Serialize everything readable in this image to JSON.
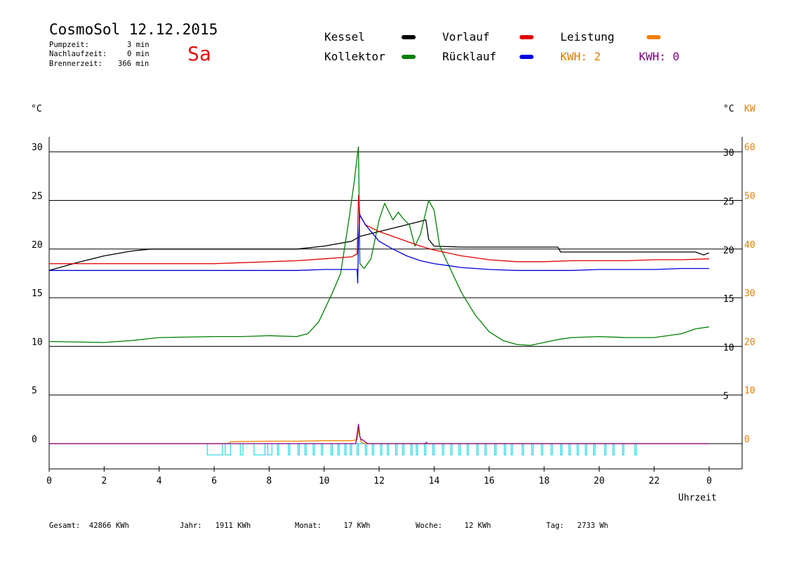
{
  "header": {
    "title": "CosmoSol 12.12.2015",
    "pump_label": "Pumpzeit:",
    "pump_value": "3 min",
    "nachlauf_label": "Nachlaufzeit:",
    "nachlauf_value": "0 min",
    "brenner_label": "Brennerzeit:",
    "brenner_value": "366 min",
    "day": "Sa",
    "day_color": "#e01010"
  },
  "legend": {
    "kessel": "Kessel",
    "kollektor": "Kollektor",
    "vorlauf": "Vorlauf",
    "ruecklauf": "Rücklauf",
    "leistung": "Leistung",
    "kwh1": "KWH: 2",
    "kwh2": "KWH: 0"
  },
  "axes": {
    "left_unit": "°C",
    "right_unit": "°C",
    "right_unit_kw": "KW",
    "xlabel": "Uhrzeit"
  },
  "footer": {
    "gesamt": "Gesamt:  42866 KWh",
    "jahr": "Jahr:   1911 KWh",
    "monat": "Monat:     17 KWh",
    "woche": "Woche:     12 KWh",
    "tag": "Tag:   2733 Wh"
  },
  "chart_data": {
    "type": "line",
    "title": "CosmoSol 12.12.2015",
    "xlabel": "Uhrzeit",
    "ylabel": "°C",
    "xlim": [
      0,
      24
    ],
    "ylim": [
      -2.5,
      32
    ],
    "x_ticks": [
      "0",
      "2",
      "4",
      "6",
      "8",
      "10",
      "12",
      "14",
      "16",
      "18",
      "20",
      "22",
      "0"
    ],
    "y_ticks_left": [
      0,
      5,
      10,
      15,
      20,
      25,
      30
    ],
    "y_ticks_right_c": [
      5,
      10,
      15,
      20,
      25,
      30
    ],
    "y_ticks_right_kw": [
      0,
      10,
      20,
      30,
      40,
      50,
      60
    ],
    "grid": "horizontal",
    "colors": {
      "kessel": "#000000",
      "kollektor": "#008000",
      "vorlauf": "#e00000",
      "ruecklauf": "#0000e0",
      "leistung": "#f08000",
      "kwh2": "#800080",
      "pump": "#00d0e0",
      "kw_axis": "#e08000"
    },
    "series": [
      {
        "name": "Kessel",
        "key": "kessel",
        "x": [
          0,
          1,
          2,
          3,
          3.7,
          9.0,
          10.0,
          11.0,
          11.3,
          12.0,
          13.0,
          13.7,
          13.8,
          14.0,
          15,
          18.5,
          18.6,
          19,
          20,
          21,
          22,
          23.5,
          23.8,
          24
        ],
        "y": [
          17.8,
          18.6,
          19.3,
          19.8,
          20.0,
          20.0,
          20.3,
          20.8,
          21.3,
          21.8,
          22.5,
          23.0,
          21.0,
          20.3,
          20.2,
          20.2,
          19.7,
          19.7,
          19.7,
          19.7,
          19.7,
          19.7,
          19.4,
          19.6
        ]
      },
      {
        "name": "Kollektor",
        "key": "kollektor",
        "x": [
          0,
          2,
          3,
          4,
          6,
          7,
          8,
          9,
          9.4,
          9.8,
          10.3,
          10.6,
          10.9,
          11.1,
          11.2,
          11.25,
          11.3,
          11.45,
          11.7,
          12.0,
          12.2,
          12.5,
          12.7,
          12.85,
          13.1,
          13.3,
          13.5,
          13.8,
          14.0,
          14.2,
          14.5,
          15,
          15.5,
          16,
          16.5,
          17,
          17.5,
          18,
          18.5,
          19,
          20,
          21,
          22,
          23,
          23.5,
          24
        ],
        "y": [
          10.5,
          10.4,
          10.6,
          10.9,
          11.0,
          11.0,
          11.1,
          11.0,
          11.3,
          12.5,
          15.5,
          17.5,
          23,
          27,
          29.5,
          30.5,
          18.5,
          18.0,
          19.0,
          23.0,
          24.7,
          23.0,
          23.8,
          23.2,
          22.5,
          20.3,
          21.5,
          25.0,
          24.0,
          20.3,
          18.5,
          15.5,
          13.2,
          11.5,
          10.6,
          10.2,
          10.1,
          10.4,
          10.7,
          10.9,
          11.0,
          10.9,
          10.9,
          11.3,
          11.8,
          12.0
        ]
      },
      {
        "name": "Vorlauf",
        "key": "vorlauf",
        "x": [
          0,
          1,
          2,
          3,
          4,
          5,
          6,
          7,
          8,
          9,
          10,
          11,
          11.2,
          11.25,
          11.3,
          11.5,
          12,
          12.5,
          13,
          13.5,
          14,
          15,
          16,
          17,
          18,
          19,
          20,
          21,
          22,
          23,
          24
        ],
        "y": [
          18.5,
          18.5,
          18.5,
          18.5,
          18.5,
          18.5,
          18.5,
          18.6,
          18.7,
          18.8,
          19.0,
          19.2,
          19.5,
          25.5,
          23.5,
          22.5,
          21.8,
          21.3,
          20.8,
          20.3,
          19.9,
          19.3,
          18.9,
          18.7,
          18.7,
          18.8,
          18.8,
          18.8,
          18.9,
          18.9,
          19.0
        ]
      },
      {
        "name": "Rücklauf",
        "key": "ruecklauf",
        "x": [
          0,
          1,
          2,
          3,
          4,
          5,
          6,
          7,
          8,
          9,
          10,
          11,
          11.2,
          11.22,
          11.25,
          11.3,
          11.5,
          12,
          12.5,
          13,
          13.5,
          14,
          15,
          16,
          17,
          18,
          19,
          20,
          21,
          22,
          23,
          24
        ],
        "y": [
          17.8,
          17.8,
          17.8,
          17.8,
          17.8,
          17.8,
          17.8,
          17.8,
          17.8,
          17.8,
          17.9,
          17.9,
          17.9,
          16.5,
          21.0,
          23.5,
          22.5,
          20.8,
          20.0,
          19.3,
          18.8,
          18.5,
          18.1,
          17.9,
          17.8,
          17.8,
          17.8,
          17.9,
          17.9,
          17.9,
          18.0,
          18.0
        ]
      },
      {
        "name": "Leistung",
        "key": "leistung",
        "axis": "kw",
        "x": [
          0,
          6.5,
          6.6,
          8,
          9,
          10,
          11.0,
          11.2,
          11.25,
          11.3,
          11.35,
          11.4,
          11.5,
          24
        ],
        "y": [
          0,
          0,
          0.4,
          0.5,
          0.5,
          0.6,
          0.6,
          0.8,
          3.0,
          1.4,
          0.3,
          0.1,
          0,
          0
        ]
      },
      {
        "name": "KWH: 0",
        "key": "kwh2",
        "axis": "kw",
        "x": [
          0,
          11.15,
          11.2,
          11.25,
          11.3,
          11.35,
          11.4,
          11.5,
          11.6,
          13.7,
          13.72,
          13.75,
          24
        ],
        "y": [
          0,
          0,
          2.0,
          4.0,
          1.5,
          0.8,
          0.8,
          0.3,
          0,
          0,
          0.3,
          0,
          0
        ]
      }
    ],
    "pump_segments": [
      [
        5.75,
        6.3
      ],
      [
        6.4,
        6.6
      ],
      [
        6.95,
        7.05
      ],
      [
        7.45,
        7.85
      ],
      [
        7.95,
        8.1
      ],
      [
        8.3,
        8.35
      ],
      [
        8.7,
        8.75
      ],
      [
        9.05,
        9.1
      ],
      [
        9.3,
        9.35
      ],
      [
        9.6,
        9.65
      ],
      [
        9.9,
        9.95
      ],
      [
        10.25,
        10.3
      ],
      [
        10.5,
        10.55
      ],
      [
        10.75,
        10.8
      ],
      [
        10.95,
        11.0
      ],
      [
        11.2,
        11.25
      ],
      [
        11.5,
        11.55
      ],
      [
        11.75,
        11.8
      ],
      [
        12.05,
        12.1
      ],
      [
        12.3,
        12.35
      ],
      [
        12.6,
        12.65
      ],
      [
        12.85,
        12.9
      ],
      [
        13.15,
        13.2
      ],
      [
        13.35,
        13.4
      ],
      [
        13.65,
        13.7
      ],
      [
        13.95,
        14.0
      ],
      [
        14.3,
        14.35
      ],
      [
        14.6,
        14.65
      ],
      [
        14.9,
        14.95
      ],
      [
        15.2,
        15.25
      ],
      [
        15.55,
        15.6
      ],
      [
        15.85,
        15.9
      ],
      [
        16.2,
        16.25
      ],
      [
        16.55,
        16.6
      ],
      [
        16.8,
        16.85
      ],
      [
        17.2,
        17.25
      ],
      [
        17.55,
        17.6
      ],
      [
        17.9,
        17.95
      ],
      [
        18.25,
        18.3
      ],
      [
        18.6,
        18.65
      ],
      [
        18.9,
        18.95
      ],
      [
        19.2,
        19.25
      ],
      [
        19.5,
        19.55
      ],
      [
        19.8,
        19.85
      ],
      [
        20.2,
        20.25
      ],
      [
        20.5,
        20.55
      ],
      [
        20.85,
        20.9
      ],
      [
        21.3,
        21.35
      ]
    ]
  }
}
